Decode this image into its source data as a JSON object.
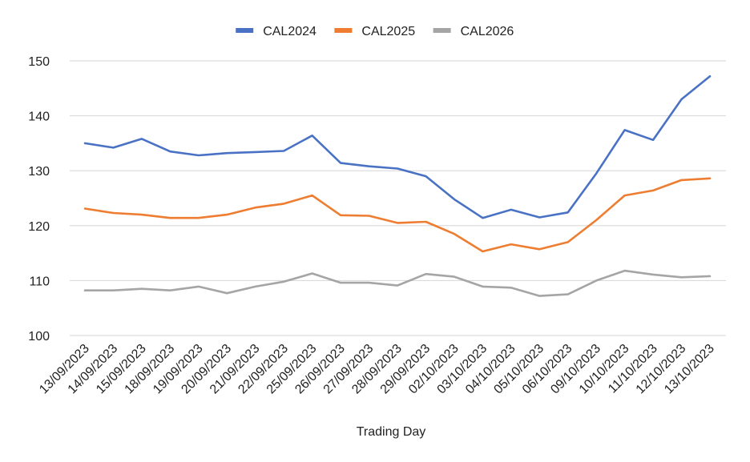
{
  "chart_data": {
    "type": "line",
    "title": "",
    "xlabel": "Trading Day",
    "ylabel": "",
    "ylim": [
      100,
      150
    ],
    "yticks": [
      100,
      110,
      120,
      130,
      140,
      150
    ],
    "grid": true,
    "legend_position": "top",
    "categories": [
      "13/09/2023",
      "14/09/2023",
      "15/09/2023",
      "18/09/2023",
      "19/09/2023",
      "20/09/2023",
      "21/09/2023",
      "22/09/2023",
      "25/09/2023",
      "26/09/2023",
      "27/09/2023",
      "28/09/2023",
      "29/09/2023",
      "02/10/2023",
      "03/10/2023",
      "04/10/2023",
      "05/10/2023",
      "06/10/2023",
      "09/10/2023",
      "10/10/2023",
      "11/10/2023",
      "12/10/2023",
      "13/10/2023"
    ],
    "series": [
      {
        "name": "CAL2024",
        "color": "#4a72c4",
        "values": [
          135.0,
          134.2,
          135.8,
          133.5,
          132.8,
          133.2,
          133.4,
          133.6,
          136.4,
          131.4,
          130.8,
          130.4,
          129.0,
          124.8,
          121.4,
          122.9,
          121.5,
          122.4,
          129.5,
          137.4,
          135.6,
          143.0,
          147.2
        ]
      },
      {
        "name": "CAL2025",
        "color": "#ee7d31",
        "values": [
          123.1,
          122.3,
          122.0,
          121.4,
          121.4,
          122.0,
          123.3,
          124.0,
          125.5,
          121.9,
          121.8,
          120.5,
          120.7,
          118.5,
          115.3,
          116.6,
          115.7,
          117.0,
          121.0,
          125.5,
          126.4,
          128.3,
          128.6
        ]
      },
      {
        "name": "CAL2026",
        "color": "#a5a5a5",
        "values": [
          108.2,
          108.2,
          108.5,
          108.2,
          108.9,
          107.7,
          108.9,
          109.8,
          111.3,
          109.6,
          109.6,
          109.1,
          111.2,
          110.7,
          108.9,
          108.7,
          107.2,
          107.5,
          110.0,
          111.8,
          111.1,
          110.6,
          110.8
        ]
      }
    ]
  }
}
